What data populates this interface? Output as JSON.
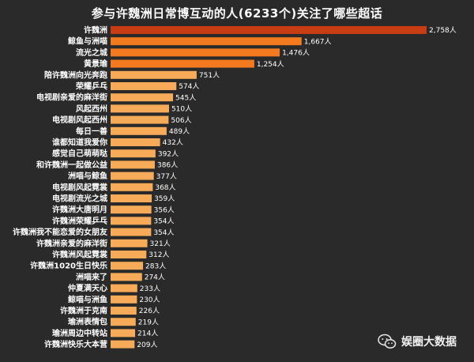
{
  "chart_data": {
    "type": "bar",
    "orientation": "horizontal",
    "title": "参与许魏洲日常博互动的人(6233个)关注了哪些超话",
    "value_suffix": "人",
    "categories": [
      "许魏洲",
      "鲸鱼与洲喵",
      "流光之城",
      "黄景瑜",
      "陪许魏洲向光奔跑",
      "荣耀乒乓",
      "电视剧亲爱的麻洋街",
      "风起西州",
      "电视剧风起西州",
      "每日一善",
      "谁都知道我爱你",
      "感觉自己萌萌哒",
      "和许魏洲一起做公益",
      "洲喵与鲸鱼",
      "电视剧风起霓裳",
      "电视剧流光之城",
      "许魏洲大唐明月",
      "许魏洲荣耀乒乓",
      "许魏洲我不能恋爱的女朋友",
      "许魏洲亲爱的麻洋街",
      "许魏洲风起霓裳",
      "许魏洲1020生日快乐",
      "洲喵来了",
      "仲夏满天心",
      "鲸喵与洲鱼",
      "许魏洲于克南",
      "瑜洲表情包",
      "瑜洲周边中转站",
      "许魏洲快乐大本营"
    ],
    "values": [
      2758,
      1667,
      1476,
      1254,
      751,
      574,
      545,
      510,
      506,
      489,
      432,
      392,
      386,
      377,
      368,
      359,
      356,
      354,
      354,
      321,
      312,
      283,
      274,
      233,
      230,
      226,
      219,
      214,
      209
    ],
    "value_labels": [
      "2,758人",
      "1,667人",
      "1,476人",
      "1,254人",
      "751人",
      "574人",
      "545人",
      "510人",
      "506人",
      "489人",
      "432人",
      "392人",
      "386人",
      "377人",
      "368人",
      "359人",
      "356人",
      "354人",
      "354人",
      "321人",
      "312人",
      "283人",
      "274人",
      "233人",
      "230人",
      "226人",
      "219人",
      "214人",
      "209人"
    ],
    "colors": {
      "dark": "#c83c14",
      "mid": "#f47a20",
      "light": "#f7ab58"
    },
    "xlim": [
      0,
      2758
    ]
  },
  "watermark": {
    "icon": "wechat-icon",
    "text": "娱圈大数据"
  }
}
